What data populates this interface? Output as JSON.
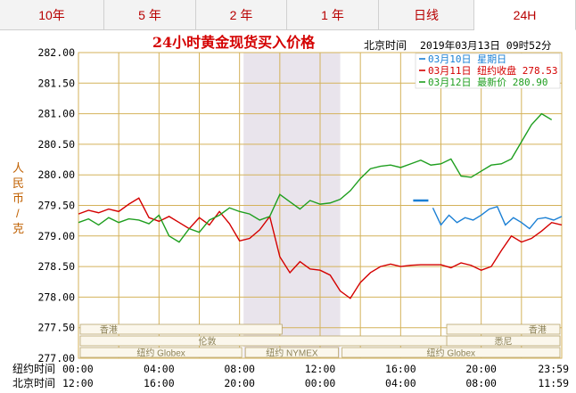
{
  "tabs": [
    {
      "label": "10年"
    },
    {
      "label": "5 年"
    },
    {
      "label": "2 年"
    },
    {
      "label": "1 年"
    },
    {
      "label": "日线"
    },
    {
      "label": "24H",
      "active": true
    }
  ],
  "chart_title": "24小时黄金现货买入价格",
  "beijing_time_label": "北京时间",
  "timestamp": "2019年03月13日 09时52分",
  "y_axis_label": [
    "人",
    "民",
    "币",
    "/",
    "克"
  ],
  "markets": [
    {
      "name": "香港",
      "row": 0
    },
    {
      "name": "香港",
      "row": 0
    },
    {
      "name": "伦敦",
      "row": 1
    },
    {
      "name": "悉尼",
      "row": 1
    },
    {
      "name": "纽约 Globex",
      "row": 2
    },
    {
      "name": "纽约 NYMEX",
      "row": 2
    },
    {
      "name": "纽约 Globex",
      "row": 2
    }
  ],
  "time_rows": [
    {
      "label": "纽约时间",
      "ticks": [
        "00:00",
        "04:00",
        "08:00",
        "12:00",
        "16:00",
        "20:00",
        "23:59"
      ]
    },
    {
      "label": "北京时间",
      "ticks": [
        "12:00",
        "16:00",
        "20:00",
        "00:00",
        "04:00",
        "08:00",
        "11:59"
      ]
    }
  ],
  "chart_data": {
    "type": "line",
    "title": "24小时黄金现货买入价格",
    "ylabel": "人民币/克",
    "ylim": [
      277.5,
      282.0
    ],
    "y_ticks": [
      "282.00",
      "281.50",
      "281.00",
      "280.50",
      "280.00",
      "279.50",
      "279.00",
      "278.50",
      "278.00",
      "277.50",
      "277.00"
    ],
    "x_hours_ny": [
      0,
      4,
      8,
      12,
      16,
      20,
      24
    ],
    "grid": true,
    "legend_position": "top-right",
    "shaded_region_ny_hours": [
      8.2,
      13.0
    ],
    "series": [
      {
        "name": "03月10日 星期日",
        "color": "#1a7fd4",
        "x": [
          16.8,
          17.2,
          17.6,
          18.0,
          18.4,
          18.8,
          19.2,
          19.6,
          20.0,
          20.4,
          20.8,
          21.2,
          21.6,
          22.0,
          22.4,
          22.8,
          23.2,
          23.6,
          24.0
        ],
        "y": [
          279.58,
          279.58,
          279.46,
          279.18,
          279.34,
          279.22,
          279.3,
          279.26,
          279.34,
          279.44,
          279.48,
          279.18,
          279.3,
          279.22,
          279.12,
          279.28,
          279.3,
          279.26,
          279.32
        ]
      },
      {
        "name": "03月11日 纽约收盘 278.53",
        "color": "#d40000",
        "x": [
          0,
          0.5,
          1,
          1.5,
          2,
          2.5,
          3,
          3.5,
          4,
          4.5,
          5,
          5.5,
          6,
          6.5,
          7,
          7.5,
          8,
          8.5,
          9,
          9.5,
          10,
          10.5,
          11,
          11.5,
          12,
          12.5,
          13,
          13.5,
          14,
          14.5,
          15,
          15.5,
          16,
          16.5,
          17,
          17.5,
          18,
          18.5,
          19,
          19.5,
          20,
          20.5,
          21,
          21.5,
          22,
          22.5,
          23,
          23.5,
          24
        ],
        "y": [
          279.36,
          279.42,
          279.38,
          279.44,
          279.4,
          279.52,
          279.62,
          279.3,
          279.24,
          279.32,
          279.22,
          279.12,
          279.3,
          279.18,
          279.4,
          279.2,
          278.92,
          278.96,
          279.1,
          279.32,
          278.66,
          278.4,
          278.58,
          278.46,
          278.44,
          278.36,
          278.1,
          277.98,
          278.24,
          278.4,
          278.5,
          278.54,
          278.5,
          278.52,
          278.53,
          278.53,
          278.53,
          278.48,
          278.56,
          278.52,
          278.44,
          278.5,
          278.76,
          279.0,
          278.9,
          278.96,
          279.08,
          279.22,
          279.18
        ]
      },
      {
        "name": "03月12日 最新价 280.90",
        "color": "#1e9e1e",
        "x": [
          0,
          0.5,
          1,
          1.5,
          2,
          2.5,
          3,
          3.5,
          4,
          4.5,
          5,
          5.5,
          6,
          6.5,
          7,
          7.5,
          8,
          8.5,
          9,
          9.5,
          10,
          10.5,
          11,
          11.5,
          12,
          12.5,
          13,
          13.5,
          14,
          14.5,
          15,
          15.5,
          16,
          16.5,
          17,
          17.5,
          18,
          18.5,
          19,
          19.5,
          20,
          20.5,
          21,
          21.5,
          22,
          22.5,
          23,
          23.5
        ],
        "y": [
          279.22,
          279.28,
          279.18,
          279.3,
          279.22,
          279.28,
          279.26,
          279.2,
          279.34,
          279.0,
          278.9,
          279.12,
          279.06,
          279.26,
          279.34,
          279.46,
          279.4,
          279.36,
          279.26,
          279.32,
          279.68,
          279.56,
          279.44,
          279.58,
          279.52,
          279.54,
          279.6,
          279.74,
          279.94,
          280.1,
          280.14,
          280.16,
          280.12,
          280.18,
          280.24,
          280.16,
          280.18,
          280.26,
          279.98,
          279.96,
          280.06,
          280.16,
          280.18,
          280.26,
          280.54,
          280.82,
          281.0,
          280.9
        ]
      }
    ]
  }
}
